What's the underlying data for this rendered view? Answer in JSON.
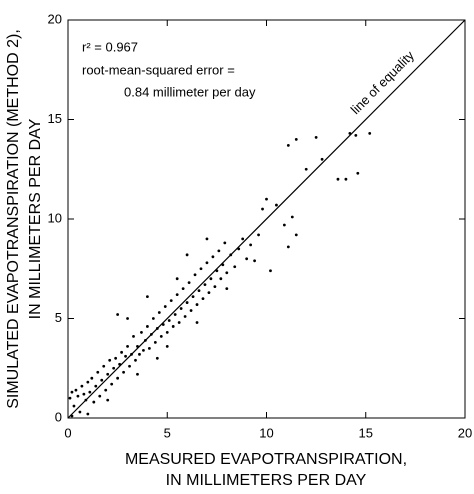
{
  "chart_data": {
    "type": "scatter",
    "xlabel": [
      "MEASURED EVAPOTRANSPIRATION,",
      "IN MILLIMETERS PER DAY"
    ],
    "ylabel": [
      "SIMULATED EVAPOTRANSPIRATION (METHOD 2),",
      "IN MILLIMETERS PER DAY"
    ],
    "annotations": [
      "r² = 0.967",
      "root-mean-squared error =",
      "0.84 millimeter per day"
    ],
    "equality_line": {
      "label": "line of equality",
      "x": [
        0,
        20
      ],
      "y": [
        0,
        20
      ]
    },
    "xlim": [
      0,
      20
    ],
    "ylim": [
      0,
      20
    ],
    "xticks": [
      0,
      5,
      10,
      15,
      20
    ],
    "yticks": [
      0,
      5,
      10,
      15,
      20
    ],
    "grid": false,
    "color": "#000000",
    "x": [
      0.1,
      0.2,
      0.3,
      0.4,
      0.5,
      0.6,
      0.7,
      0.8,
      0.9,
      1.0,
      1.1,
      1.2,
      1.3,
      1.4,
      1.5,
      1.6,
      1.7,
      1.8,
      1.9,
      2.0,
      2.1,
      2.2,
      2.3,
      2.4,
      2.5,
      2.6,
      2.7,
      2.8,
      2.9,
      3.0,
      3.1,
      3.2,
      3.3,
      3.4,
      3.5,
      3.6,
      3.7,
      3.8,
      3.9,
      4.0,
      4.1,
      4.2,
      4.3,
      4.4,
      4.5,
      4.6,
      4.7,
      4.8,
      4.9,
      5.0,
      5.1,
      5.2,
      5.3,
      5.4,
      5.5,
      5.6,
      5.7,
      5.8,
      5.9,
      6.0,
      6.1,
      6.2,
      6.3,
      6.4,
      6.5,
      6.6,
      6.7,
      6.8,
      6.9,
      7.0,
      7.1,
      7.2,
      7.3,
      7.4,
      7.5,
      7.6,
      7.7,
      7.8,
      7.9,
      8.0,
      8.2,
      8.4,
      8.6,
      8.8,
      9.0,
      9.2,
      9.4,
      9.6,
      9.8,
      10.0,
      10.2,
      10.5,
      10.9,
      11.1,
      11.1,
      11.3,
      11.5,
      11.5,
      12.0,
      12.5,
      12.8,
      13.6,
      14.0,
      14.2,
      14.5,
      14.6,
      15.2,
      1.0,
      2.0,
      3.0,
      4.0,
      5.5,
      6.0,
      7.0,
      8.0,
      2.5,
      3.5,
      4.5,
      5.0,
      6.5,
      0.2
    ],
    "y": [
      1.0,
      1.3,
      0.6,
      1.4,
      1.1,
      0.3,
      1.6,
      1.2,
      0.9,
      1.8,
      1.3,
      2.0,
      0.8,
      1.6,
      2.3,
      1.1,
      1.9,
      2.6,
      1.4,
      2.2,
      2.9,
      1.7,
      2.5,
      3.0,
      2.0,
      2.7,
      3.3,
      2.3,
      3.1,
      3.6,
      2.6,
      3.2,
      4.1,
      2.9,
      3.6,
      3.2,
      4.3,
      3.4,
      3.9,
      4.6,
      3.5,
      4.2,
      5.0,
      3.8,
      4.5,
      5.3,
      4.1,
      4.7,
      5.6,
      4.3,
      4.9,
      5.9,
      4.6,
      5.2,
      6.2,
      4.8,
      5.5,
      6.5,
      5.1,
      5.8,
      6.8,
      5.4,
      6.1,
      7.2,
      5.7,
      6.4,
      7.5,
      6.0,
      6.7,
      7.8,
      6.3,
      7.0,
      8.1,
      6.6,
      7.4,
      8.4,
      7.0,
      7.7,
      8.8,
      7.3,
      8.2,
      7.6,
      8.5,
      9.0,
      8.0,
      8.7,
      7.9,
      9.2,
      10.5,
      11.0,
      7.4,
      10.7,
      9.7,
      8.6,
      13.7,
      10.1,
      9.2,
      14.0,
      12.5,
      14.1,
      13.0,
      12.0,
      12.0,
      14.3,
      14.2,
      12.3,
      14.3,
      0.2,
      0.9,
      5.0,
      6.1,
      7.0,
      8.2,
      9.0,
      6.5,
      5.2,
      2.2,
      3.0,
      3.6,
      4.8,
      0.1
    ]
  }
}
